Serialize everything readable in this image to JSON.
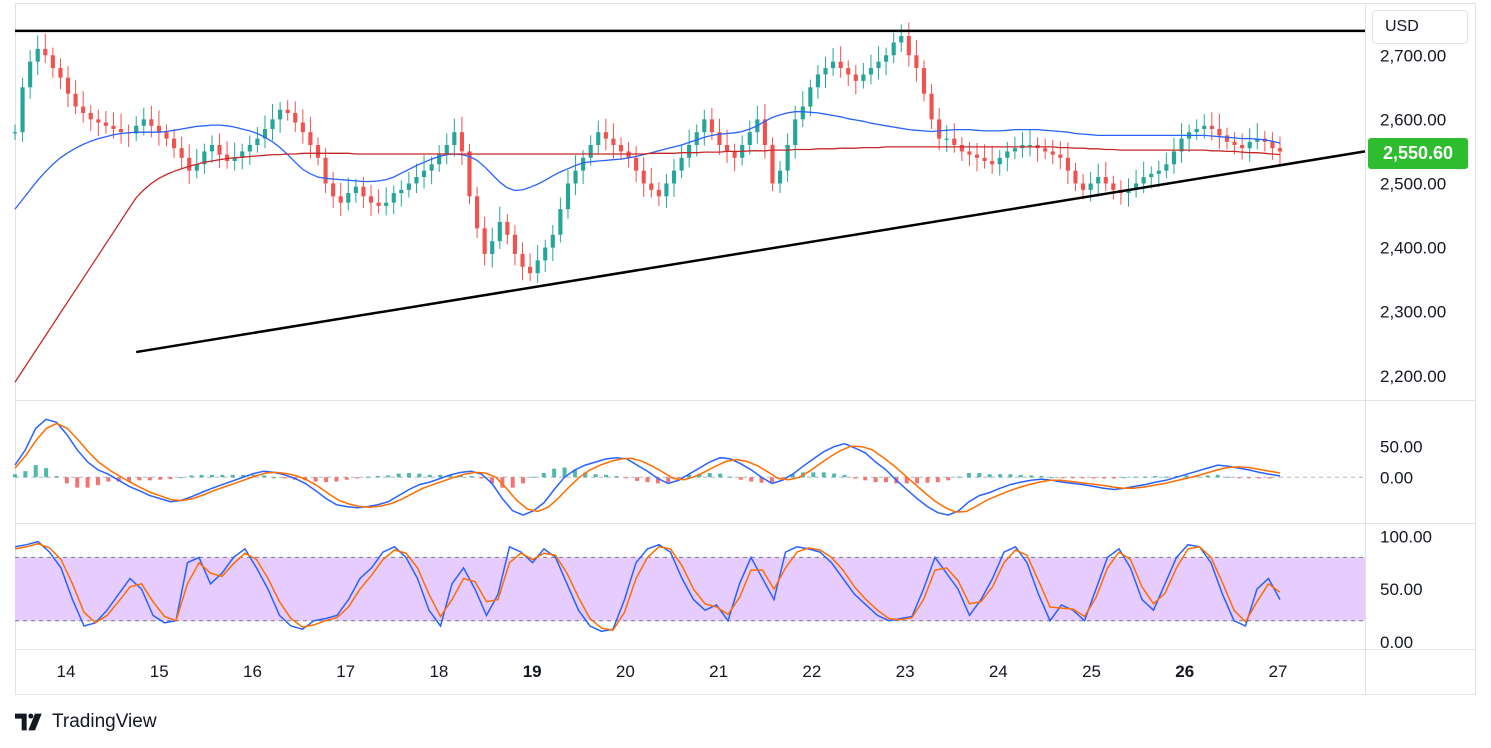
{
  "header": {
    "currency": "USD"
  },
  "price_badge": {
    "value": "2,550.60",
    "color": "#2ebd2e"
  },
  "brand": {
    "name": "TradingView"
  },
  "colors": {
    "up_candle": "#26a69a",
    "down_candle": "#ef5350",
    "candle_wick": "#26a69a",
    "ma_fast": "#2962ff",
    "ma_slow": "#c62828",
    "trendline": "#000000",
    "macd_line": "#2962ff",
    "signal_line": "#ff6d00",
    "hist_up": "#26a69a",
    "hist_down": "#ef5350",
    "rsi_band": "#e6ccff"
  },
  "chart_data": [
    {
      "type": "candlestick",
      "panel": "price",
      "ylabel": "USD",
      "ylim": [
        2170,
        2755
      ],
      "y_ticks": [
        "2,700.00",
        "2,600.00",
        "2,500.00",
        "2,400.00",
        "2,300.00",
        "2,200.00"
      ],
      "y_tick_values": [
        2700,
        2600,
        2500,
        2400,
        2300,
        2200
      ],
      "last_price": 2550.6,
      "closes": [
        2580,
        2650,
        2690,
        2710,
        2700,
        2680,
        2665,
        2640,
        2620,
        2610,
        2600,
        2595,
        2590,
        2585,
        2580,
        2578,
        2590,
        2600,
        2590,
        2580,
        2570,
        2555,
        2540,
        2520,
        2530,
        2550,
        2560,
        2545,
        2535,
        2540,
        2550,
        2560,
        2570,
        2585,
        2600,
        2615,
        2610,
        2595,
        2580,
        2560,
        2540,
        2500,
        2480,
        2470,
        2485,
        2495,
        2480,
        2470,
        2465,
        2470,
        2485,
        2490,
        2500,
        2510,
        2520,
        2530,
        2545,
        2560,
        2580,
        2550,
        2480,
        2430,
        2390,
        2410,
        2440,
        2420,
        2390,
        2370,
        2360,
        2380,
        2400,
        2420,
        2460,
        2500,
        2520,
        2540,
        2560,
        2580,
        2570,
        2560,
        2550,
        2540,
        2520,
        2500,
        2490,
        2480,
        2500,
        2520,
        2540,
        2560,
        2580,
        2600,
        2580,
        2560,
        2550,
        2540,
        2560,
        2580,
        2600,
        2560,
        2500,
        2520,
        2560,
        2600,
        2620,
        2650,
        2670,
        2680,
        2690,
        2680,
        2670,
        2660,
        2670,
        2680,
        2690,
        2700,
        2720,
        2730,
        2700,
        2680,
        2640,
        2600,
        2570,
        2570,
        2560,
        2550,
        2545,
        2540,
        2535,
        2530,
        2540,
        2550,
        2555,
        2560,
        2560,
        2555,
        2550,
        2545,
        2540,
        2520,
        2500,
        2490,
        2500,
        2510,
        2500,
        2490,
        2485,
        2490,
        2500,
        2510,
        2515,
        2520,
        2530,
        2550,
        2570,
        2580,
        2585,
        2590,
        2585,
        2575,
        2565,
        2560,
        2555,
        2565,
        2570,
        2565,
        2555,
        2550
      ],
      "series": [
        {
          "name": "",
          "role": "fast-ma",
          "values": [
            2460,
            2475,
            2490,
            2505,
            2518,
            2530,
            2540,
            2548,
            2555,
            2561,
            2566,
            2570,
            2573,
            2576,
            2578,
            2579,
            2580,
            2580,
            2580,
            2580,
            2581,
            2583,
            2585,
            2587,
            2589,
            2590,
            2591,
            2591,
            2590,
            2588,
            2585,
            2582,
            2578,
            2572,
            2565,
            2556,
            2545,
            2533,
            2522,
            2515,
            2510,
            2508,
            2507,
            2506,
            2505,
            2504,
            2503,
            2503,
            2504,
            2506,
            2510,
            2516,
            2522,
            2528,
            2533,
            2538,
            2542,
            2545,
            2546,
            2545,
            2542,
            2536,
            2526,
            2514,
            2502,
            2493,
            2489,
            2490,
            2494,
            2499,
            2505,
            2512,
            2518,
            2523,
            2528,
            2532,
            2534,
            2535,
            2536,
            2537,
            2538,
            2540,
            2542,
            2545,
            2548,
            2551,
            2554,
            2557,
            2560,
            2564,
            2568,
            2572,
            2575,
            2577,
            2578,
            2579,
            2581,
            2585,
            2590,
            2597,
            2603,
            2607,
            2610,
            2612,
            2612,
            2611,
            2610,
            2608,
            2606,
            2604,
            2601,
            2599,
            2597,
            2594,
            2592,
            2590,
            2588,
            2586,
            2584,
            2583,
            2582,
            2581,
            2582,
            2583,
            2584,
            2584,
            2584,
            2583,
            2582,
            2582,
            2582,
            2583,
            2584,
            2584,
            2584,
            2584,
            2583,
            2582,
            2581,
            2580,
            2578,
            2577,
            2576,
            2575,
            2575,
            2575,
            2575,
            2575,
            2575,
            2575,
            2575,
            2575,
            2575,
            2575,
            2575,
            2575,
            2575,
            2575,
            2574,
            2573,
            2572,
            2571,
            2570,
            2570,
            2569,
            2568,
            2566,
            2563
          ]
        },
        {
          "name": "",
          "role": "slow-ma",
          "values": [
            2190,
            2208,
            2226,
            2244,
            2262,
            2280,
            2298,
            2316,
            2334,
            2352,
            2370,
            2388,
            2406,
            2424,
            2442,
            2460,
            2478,
            2490,
            2500,
            2508,
            2514,
            2519,
            2523,
            2527,
            2530,
            2533,
            2535,
            2537,
            2539,
            2540,
            2541,
            2542,
            2543,
            2544,
            2545,
            2545,
            2546,
            2546,
            2547,
            2547,
            2547,
            2547,
            2547,
            2547,
            2547,
            2546,
            2546,
            2546,
            2546,
            2546,
            2546,
            2546,
            2546,
            2546,
            2546,
            2546,
            2546,
            2546,
            2546,
            2546,
            2546,
            2546,
            2546,
            2546,
            2546,
            2546,
            2546,
            2546,
            2546,
            2546,
            2546,
            2546,
            2546,
            2546,
            2546,
            2546,
            2546,
            2546,
            2546,
            2546,
            2546,
            2546,
            2546,
            2546,
            2547,
            2547,
            2547,
            2547,
            2548,
            2548,
            2548,
            2549,
            2549,
            2549,
            2550,
            2550,
            2550,
            2551,
            2551,
            2551,
            2552,
            2552,
            2552,
            2553,
            2553,
            2553,
            2554,
            2554,
            2554,
            2555,
            2555,
            2555,
            2556,
            2556,
            2556,
            2557,
            2557,
            2557,
            2557,
            2557,
            2557,
            2557,
            2557,
            2557,
            2557,
            2557,
            2557,
            2557,
            2557,
            2557,
            2557,
            2557,
            2557,
            2557,
            2557,
            2557,
            2557,
            2557,
            2556,
            2556,
            2555,
            2555,
            2554,
            2554,
            2553,
            2553,
            2552,
            2552,
            2552,
            2552,
            2552,
            2552,
            2552,
            2552,
            2552,
            2552,
            2552,
            2552,
            2551,
            2551,
            2550,
            2550,
            2549,
            2548,
            2548,
            2547,
            2546,
            2545
          ]
        }
      ],
      "annotations": [
        {
          "kind": "horizontal-resistance",
          "y": 2738
        },
        {
          "kind": "rising-trendline",
          "x_start": 16,
          "y_start": 2237,
          "x_end": 147,
          "y_end": 2550
        }
      ]
    },
    {
      "type": "line",
      "panel": "macd",
      "ylim": [
        -70,
        120
      ],
      "y_ticks": [
        "50.00",
        "0.00"
      ],
      "y_tick_values": [
        50,
        0
      ],
      "series": [
        {
          "name": "",
          "role": "macd",
          "values": [
            20,
            45,
            80,
            95,
            90,
            70,
            45,
            25,
            12,
            5,
            -5,
            -15,
            -22,
            -30,
            -35,
            -40,
            -38,
            -32,
            -25,
            -18,
            -12,
            -6,
            0,
            6,
            10,
            8,
            4,
            -2,
            -10,
            -22,
            -35,
            -45,
            -48,
            -50,
            -48,
            -45,
            -40,
            -30,
            -20,
            -12,
            -8,
            -2,
            4,
            8,
            10,
            5,
            -10,
            -35,
            -55,
            -62,
            -55,
            -42,
            -20,
            0,
            12,
            20,
            25,
            30,
            32,
            30,
            20,
            10,
            -2,
            -10,
            -5,
            5,
            15,
            25,
            32,
            30,
            22,
            12,
            0,
            -10,
            -5,
            5,
            18,
            30,
            42,
            50,
            55,
            48,
            40,
            25,
            12,
            -5,
            -20,
            -35,
            -48,
            -58,
            -62,
            -55,
            -40,
            -30,
            -25,
            -18,
            -12,
            -8,
            -5,
            -3,
            -5,
            -8,
            -10,
            -12,
            -15,
            -18,
            -20,
            -18,
            -15,
            -12,
            -8,
            -5,
            0,
            5,
            10,
            15,
            20,
            18,
            15,
            12,
            8,
            5,
            2
          ]
        },
        {
          "name": "",
          "role": "signal",
          "values": [
            15,
            35,
            60,
            80,
            88,
            80,
            62,
            42,
            25,
            12,
            2,
            -8,
            -17,
            -25,
            -31,
            -37,
            -38,
            -35,
            -29,
            -22,
            -16,
            -10,
            -4,
            2,
            7,
            8,
            6,
            2,
            -5,
            -15,
            -27,
            -38,
            -44,
            -48,
            -49,
            -47,
            -43,
            -36,
            -27,
            -18,
            -12,
            -6,
            0,
            5,
            8,
            7,
            0,
            -18,
            -38,
            -52,
            -56,
            -49,
            -34,
            -16,
            0,
            12,
            20,
            26,
            30,
            31,
            26,
            18,
            8,
            -2,
            -4,
            1,
            9,
            18,
            26,
            29,
            26,
            19,
            9,
            -2,
            -4,
            0,
            10,
            22,
            34,
            44,
            51,
            50,
            45,
            33,
            20,
            5,
            -10,
            -25,
            -39,
            -50,
            -57,
            -56,
            -47,
            -37,
            -30,
            -23,
            -17,
            -12,
            -8,
            -5,
            -5,
            -7,
            -9,
            -11,
            -13,
            -16,
            -18,
            -18,
            -16,
            -13,
            -10,
            -6,
            -2,
            2,
            7,
            12,
            16,
            17,
            16,
            13,
            10,
            7
          ]
        }
      ]
    },
    {
      "type": "line",
      "panel": "stochastic-rsi",
      "ylim": [
        -3,
        105
      ],
      "y_ticks": [
        "100.00",
        "50.00",
        "0.00"
      ],
      "y_tick_values": [
        100,
        50,
        0
      ],
      "band": [
        20,
        80
      ],
      "series": [
        {
          "name": "",
          "role": "k",
          "values": [
            90,
            92,
            95,
            85,
            70,
            40,
            15,
            18,
            30,
            45,
            60,
            50,
            25,
            18,
            20,
            75,
            80,
            55,
            65,
            80,
            88,
            70,
            50,
            25,
            15,
            12,
            20,
            22,
            25,
            40,
            60,
            70,
            85,
            90,
            80,
            60,
            30,
            15,
            55,
            70,
            50,
            25,
            45,
            90,
            85,
            75,
            88,
            80,
            55,
            30,
            15,
            10,
            12,
            40,
            75,
            88,
            92,
            85,
            60,
            40,
            30,
            35,
            20,
            55,
            80,
            60,
            40,
            85,
            90,
            88,
            85,
            75,
            60,
            45,
            35,
            25,
            20,
            22,
            24,
            50,
            80,
            65,
            50,
            25,
            40,
            60,
            85,
            90,
            75,
            45,
            20,
            35,
            30,
            20,
            50,
            80,
            88,
            70,
            40,
            30,
            55,
            80,
            92,
            90,
            75,
            45,
            20,
            15,
            50,
            60,
            40
          ]
        },
        {
          "name": "",
          "role": "d",
          "values": [
            88,
            90,
            93,
            89,
            78,
            55,
            28,
            18,
            25,
            38,
            52,
            55,
            38,
            24,
            20,
            55,
            75,
            65,
            62,
            74,
            84,
            78,
            60,
            38,
            22,
            14,
            16,
            20,
            23,
            33,
            50,
            63,
            78,
            87,
            84,
            70,
            45,
            24,
            40,
            60,
            57,
            38,
            40,
            75,
            84,
            78,
            84,
            82,
            65,
            42,
            22,
            13,
            11,
            28,
            60,
            80,
            90,
            88,
            72,
            50,
            36,
            33,
            26,
            42,
            68,
            68,
            50,
            70,
            85,
            89,
            87,
            80,
            68,
            52,
            40,
            30,
            22,
            21,
            23,
            40,
            68,
            70,
            58,
            36,
            38,
            52,
            75,
            87,
            82,
            58,
            33,
            32,
            31,
            24,
            42,
            70,
            85,
            78,
            52,
            36,
            46,
            70,
            88,
            90,
            80,
            56,
            30,
            19,
            38,
            55,
            47
          ]
        }
      ]
    }
  ],
  "x_axis": {
    "labels": [
      "14",
      "15",
      "16",
      "17",
      "18",
      "19",
      "20",
      "21",
      "22",
      "23",
      "24",
      "25",
      "26",
      "27"
    ],
    "bold": [
      false,
      false,
      false,
      false,
      false,
      true,
      false,
      false,
      false,
      false,
      false,
      false,
      true,
      false
    ]
  }
}
